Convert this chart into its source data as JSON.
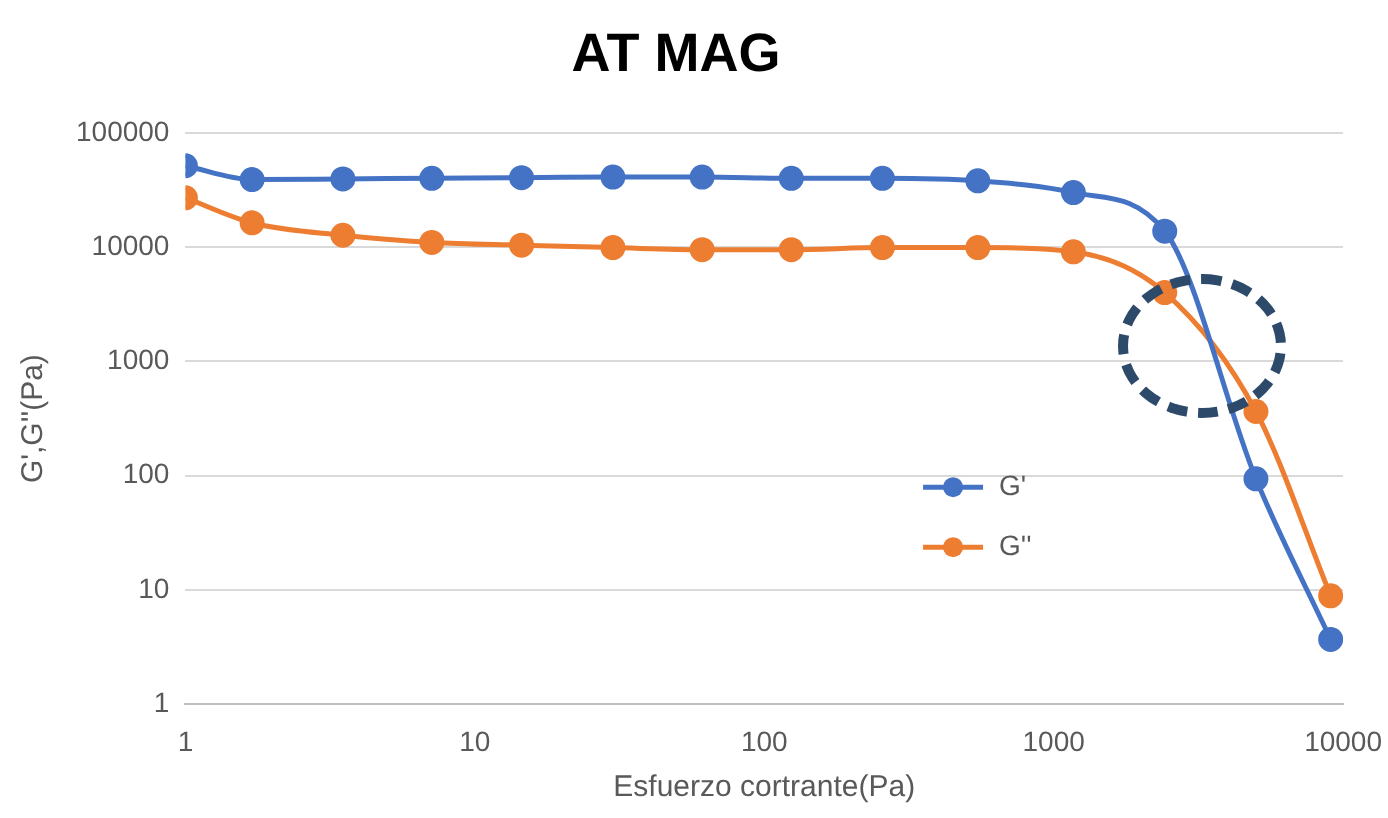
{
  "chart_data": {
    "type": "line",
    "title": "AT MAG",
    "xlabel": "Esfuerzo cortrante(Pa)",
    "ylabel": "G',G''(Pa)",
    "log": "xy",
    "xlim": [
      1,
      10000
    ],
    "xticks": [
      1,
      10,
      100,
      1000,
      10000
    ],
    "ylim": [
      1,
      100000
    ],
    "yticks": [
      1,
      10,
      100,
      1000,
      10000,
      100000
    ],
    "grid": "y",
    "legend": "right",
    "marker": "circle",
    "line_style": "solid",
    "series": [
      {
        "name": "G'",
        "color": "#4472c4",
        "x": [
          1,
          1.7,
          3.5,
          7.1,
          14.5,
          30,
          61,
          124,
          256,
          547,
          1170,
          2420,
          5000,
          9060
        ],
        "values": [
          51500,
          39000,
          39500,
          40000,
          40500,
          41000,
          41000,
          40000,
          40000,
          38000,
          30000,
          13800,
          94,
          3.7
        ]
      },
      {
        "name": "G''",
        "color": "#ed7d31",
        "x": [
          1,
          1.7,
          3.5,
          7.1,
          14.5,
          30,
          61,
          124,
          256,
          547,
          1170,
          2420,
          5000,
          9060
        ],
        "values": [
          27000,
          16300,
          12700,
          11000,
          10400,
          9900,
          9500,
          9500,
          9900,
          9900,
          9100,
          4000,
          365,
          8.9
        ]
      }
    ]
  }
}
